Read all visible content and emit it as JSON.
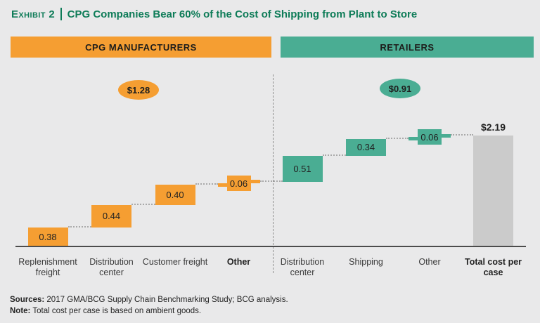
{
  "title": {
    "exhibit": "Exhibit 2",
    "text": "CPG Companies Bear 60% of the Cost of Shipping from Plant to Store"
  },
  "section_headers": {
    "left": "CPG MANUFACTURERS",
    "right": "RETAILERS"
  },
  "colors": {
    "orange": "#F59E32",
    "teal": "#4AAD93",
    "total_gray": "#CBCBCB",
    "background": "#E9E9EA",
    "title_green": "#0E7C58",
    "axis": "#4C4C4C",
    "connector": "#A9A9A9"
  },
  "chart_data": {
    "type": "waterfall",
    "unit_style": "dollars per case",
    "groups": [
      {
        "name": "CPG MANUFACTURERS",
        "color": "#F59E32",
        "total": 1.28,
        "total_label": "$1.28",
        "segments": [
          {
            "label": "Replenishment freight",
            "value": 0.38
          },
          {
            "label": "Distribution center",
            "value": 0.44
          },
          {
            "label": "Customer freight",
            "value": 0.4
          },
          {
            "label": "Other",
            "value": 0.06,
            "bold": true
          }
        ]
      },
      {
        "name": "RETAILERS",
        "color": "#4AAD93",
        "total": 0.91,
        "total_label": "$0.91",
        "segments": [
          {
            "label": "Distribution center",
            "value": 0.51
          },
          {
            "label": "Shipping",
            "value": 0.34
          },
          {
            "label": "Other",
            "value": 0.06
          }
        ]
      }
    ],
    "total_bar": {
      "label": "Total cost per case",
      "value": 2.19,
      "value_label": "$2.19"
    },
    "ylim": [
      0,
      2.4
    ],
    "grid": false,
    "legend": false
  },
  "footer": {
    "sources_label": "Sources:",
    "sources_text": " 2017 GMA/BCG Supply Chain Benchmarking Study; BCG analysis.",
    "note_label": "Note:",
    "note_text": " Total cost per case is based on ambient goods."
  }
}
